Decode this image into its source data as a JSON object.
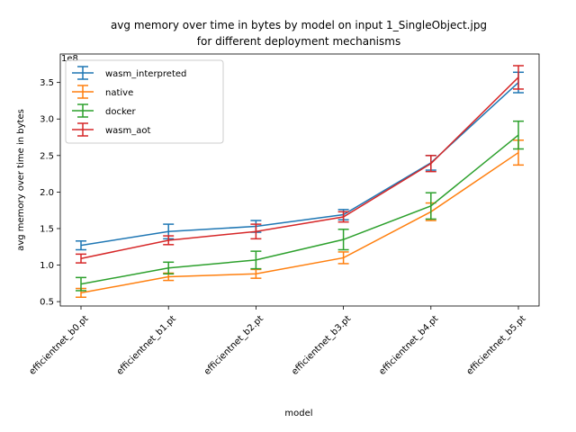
{
  "chart_data": {
    "type": "line",
    "title_line1": "avg memory over time in bytes by model on input 1_SingleObject.jpg",
    "title_line2": "for different deployment mechanisms",
    "xlabel": "model",
    "ylabel": "avg memory over time in bytes",
    "y_offset_label": "1e8",
    "categories": [
      "efficientnet_b0.pt",
      "efficientnet_b1.pt",
      "efficientnet_b2.pt",
      "efficientnet_b3.pt",
      "efficientnet_b4.pt",
      "efficientnet_b5.pt"
    ],
    "ylim": [
      0.44,
      3.89
    ],
    "y_ticks": [
      0.5,
      1.0,
      1.5,
      2.0,
      2.5,
      3.0,
      3.5
    ],
    "y_tick_labels": [
      "0.5",
      "1.0",
      "1.5",
      "2.0",
      "2.5",
      "3.0",
      "3.5"
    ],
    "y_unit_scale": 100000000.0,
    "grid": false,
    "legend_position": "top-left",
    "series": [
      {
        "name": "wasm_interpreted",
        "color": "#1f77b4",
        "values": [
          1.27,
          1.46,
          1.53,
          1.69,
          2.4,
          3.5
        ],
        "err": [
          0.06,
          0.1,
          0.08,
          0.07,
          0.1,
          0.14
        ]
      },
      {
        "name": "native",
        "color": "#ff7f0e",
        "values": [
          0.62,
          0.84,
          0.88,
          1.1,
          1.73,
          2.54
        ],
        "err": [
          0.06,
          0.05,
          0.06,
          0.08,
          0.12,
          0.17
        ]
      },
      {
        "name": "docker",
        "color": "#2ca02c",
        "values": [
          0.74,
          0.96,
          1.07,
          1.35,
          1.81,
          2.78
        ],
        "err": [
          0.09,
          0.08,
          0.12,
          0.14,
          0.18,
          0.19
        ]
      },
      {
        "name": "wasm_aot",
        "color": "#d62728",
        "values": [
          1.09,
          1.34,
          1.46,
          1.66,
          2.39,
          3.57
        ],
        "err": [
          0.06,
          0.06,
          0.1,
          0.07,
          0.11,
          0.16
        ]
      }
    ]
  }
}
